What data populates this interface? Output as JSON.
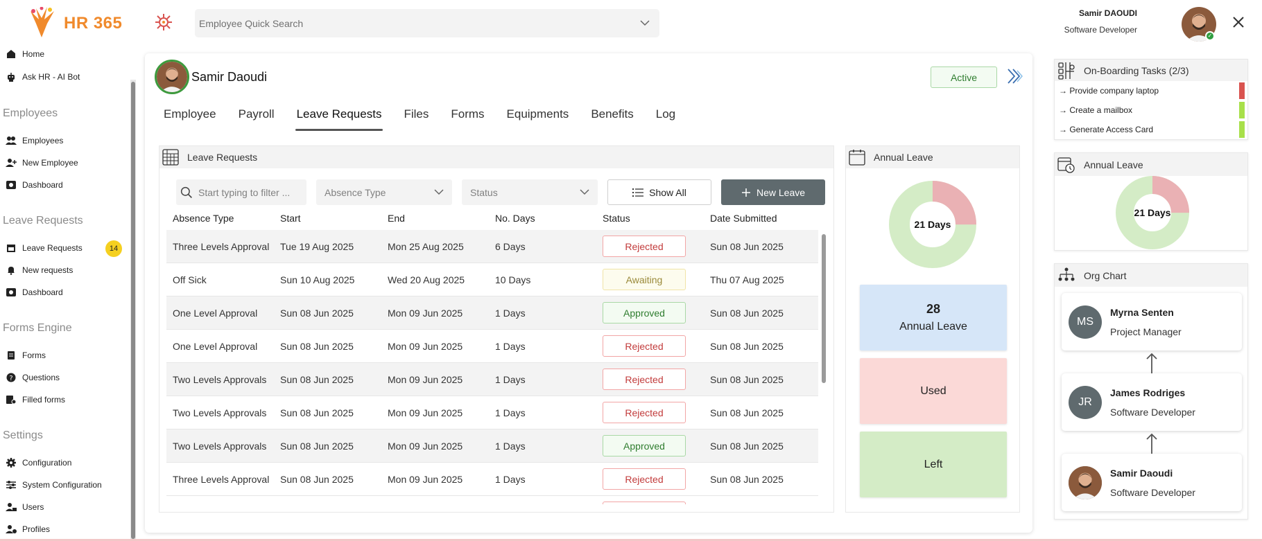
{
  "app": {
    "logo_text": "HR 365"
  },
  "header": {
    "search_placeholder": "Employee Quick Search",
    "user_name": "Samir DAOUDI",
    "user_role": "Software Developer"
  },
  "sidebar": {
    "top_items": [
      {
        "label": "Home",
        "icon": "home-icon"
      },
      {
        "label": "Ask HR - AI Bot",
        "icon": "robot-icon"
      }
    ],
    "sections": [
      {
        "title": "Employees",
        "items": [
          {
            "label": "Employees",
            "icon": "users-icon"
          },
          {
            "label": "New Employee",
            "icon": "add-user-icon"
          },
          {
            "label": "Dashboard",
            "icon": "dashboard-icon"
          }
        ]
      },
      {
        "title": "Leave Requests",
        "items": [
          {
            "label": "Leave Requests",
            "icon": "calendar-icon",
            "badge": "14"
          },
          {
            "label": "New requests",
            "icon": "bell-icon"
          },
          {
            "label": "Dashboard",
            "icon": "dashboard-icon"
          }
        ]
      },
      {
        "title": "Forms Engine",
        "items": [
          {
            "label": "Forms",
            "icon": "form-icon"
          },
          {
            "label": "Questions",
            "icon": "question-icon"
          },
          {
            "label": "Filled forms",
            "icon": "filled-form-icon"
          }
        ]
      },
      {
        "title": "Settings",
        "items": [
          {
            "label": "Configuration",
            "icon": "gear-icon"
          },
          {
            "label": "System Configuration",
            "icon": "sliders-icon"
          },
          {
            "label": "Users",
            "icon": "user-lock-icon"
          },
          {
            "label": "Profiles",
            "icon": "user-gear-icon"
          }
        ]
      }
    ]
  },
  "employee": {
    "name": "Samir Daoudi",
    "status": "Active"
  },
  "tabs": [
    "Employee",
    "Payroll",
    "Leave Requests",
    "Files",
    "Forms",
    "Equipments",
    "Benefits",
    "Log"
  ],
  "active_tab": "Leave Requests",
  "leave_requests": {
    "title": "Leave Requests",
    "filter_placeholder": "Start typing to filter ...",
    "absence_type_select": "Absence Type",
    "status_select": "Status",
    "show_all_label": "Show All",
    "new_leave_label": "New Leave",
    "columns": [
      "Absence Type",
      "Start",
      "End",
      "No. Days",
      "Status",
      "Date Submitted"
    ],
    "rows": [
      {
        "type": "Three Levels Approval",
        "start": "Tue 19 Aug 2025",
        "end": "Mon 25 Aug 2025",
        "days": "6 Days",
        "status": "Rejected",
        "submitted": "Sun 08 Jun 2025"
      },
      {
        "type": "Off Sick",
        "start": "Sun 10 Aug 2025",
        "end": "Wed 20 Aug 2025",
        "days": "10 Days",
        "status": "Awaiting",
        "submitted": "Thu 07 Aug 2025"
      },
      {
        "type": "One Level Approval",
        "start": "Sun 08 Jun 2025",
        "end": "Mon 09 Jun 2025",
        "days": "1 Days",
        "status": "Approved",
        "submitted": "Sun 08 Jun 2025"
      },
      {
        "type": "One Level Approval",
        "start": "Sun 08 Jun 2025",
        "end": "Mon 09 Jun 2025",
        "days": "1 Days",
        "status": "Rejected",
        "submitted": "Sun 08 Jun 2025"
      },
      {
        "type": "Two Levels Approvals",
        "start": "Sun 08 Jun 2025",
        "end": "Mon 09 Jun 2025",
        "days": "1 Days",
        "status": "Rejected",
        "submitted": "Sun 08 Jun 2025"
      },
      {
        "type": "Two Levels Approvals",
        "start": "Sun 08 Jun 2025",
        "end": "Mon 09 Jun 2025",
        "days": "1 Days",
        "status": "Rejected",
        "submitted": "Sun 08 Jun 2025"
      },
      {
        "type": "Two Levels Approvals",
        "start": "Sun 08 Jun 2025",
        "end": "Mon 09 Jun 2025",
        "days": "1 Days",
        "status": "Approved",
        "submitted": "Sun 08 Jun 2025"
      },
      {
        "type": "Three Levels Approval",
        "start": "Sun 08 Jun 2025",
        "end": "Mon 09 Jun 2025",
        "days": "1 Days",
        "status": "Rejected",
        "submitted": "Sun 08 Jun 2025"
      }
    ]
  },
  "annual_leave": {
    "title": "Annual Leave",
    "donut_center": "21 Days",
    "used_fraction": 0.25,
    "total_value": "28",
    "total_label": "Annual Leave",
    "used_label": "Used",
    "left_label": "Left",
    "colors": {
      "used": "#eab1b4",
      "left": "#d4ecc6",
      "total_bg": "#d6e6f8",
      "used_bg": "#fbd9d7",
      "left_bg": "#d4ecc6"
    }
  },
  "onboarding": {
    "title": "On-Boarding Tasks (2/3)",
    "tasks": [
      {
        "label": "→ Provide company laptop",
        "color": "#d9534f"
      },
      {
        "label": "→ Create a mailbox",
        "color": "#a8e04a"
      },
      {
        "label": "→ Generate Access Card",
        "color": "#a8e04a"
      }
    ]
  },
  "annual_leave_side": {
    "title": "Annual Leave",
    "donut_center": "21 Days",
    "used_fraction": 0.25
  },
  "org_chart": {
    "title": "Org Chart",
    "people": [
      {
        "initials": "MS",
        "name": "Myrna Senten",
        "role": "Project Manager"
      },
      {
        "initials": "JR",
        "name": "James Rodriges",
        "role": "Software Developer"
      },
      {
        "initials": "",
        "name": "Samir Daoudi",
        "role": "Software Developer"
      }
    ]
  }
}
